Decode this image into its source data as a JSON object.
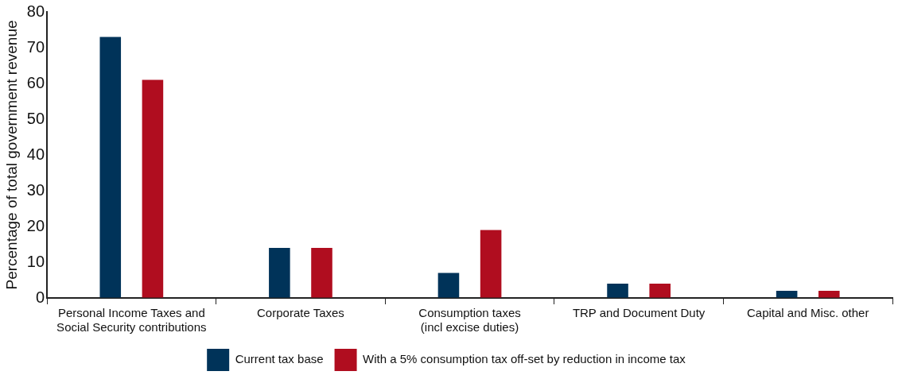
{
  "chart_data": {
    "type": "bar",
    "ylabel": "Percentage of total government revenue",
    "categories": [
      "Personal Income Taxes and\nSocial Security contributions",
      "Corporate Taxes",
      "Consumption taxes\n(incl excise duties)",
      "TRP and Document Duty",
      "Capital and Misc. other"
    ],
    "series": [
      {
        "name": "Current tax base",
        "color": "#003359",
        "values": [
          73,
          14,
          7,
          4,
          2
        ]
      },
      {
        "name": "With a 5% consumption tax off-set by reduction in income tax",
        "color": "#b00d1f",
        "values": [
          61,
          14,
          19,
          4,
          2
        ]
      }
    ],
    "ylim": [
      0,
      80
    ],
    "yticks": [
      0,
      10,
      20,
      30,
      40,
      50,
      60,
      70,
      80
    ],
    "grid": false,
    "legend": "bottom"
  }
}
